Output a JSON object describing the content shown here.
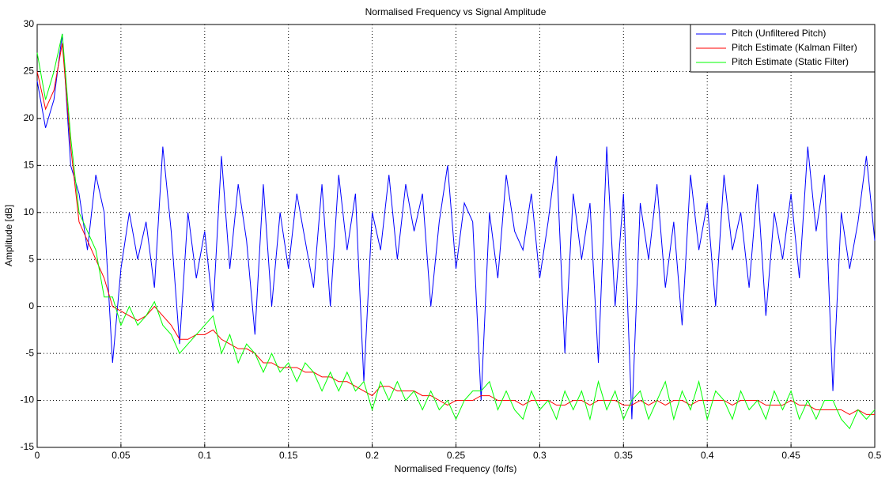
{
  "chart_data": {
    "type": "line",
    "title": "Normalised Frequency vs Signal Amplitude",
    "x_label": "Normalised Frequency (fo/fs)",
    "y_label": "Amplitude [dB]",
    "xlim": [
      0,
      0.5
    ],
    "ylim": [
      -15,
      30
    ],
    "xticks": [
      0,
      0.05,
      0.1,
      0.15,
      0.2,
      0.25,
      0.3,
      0.35,
      0.4,
      0.45,
      0.5
    ],
    "yticks": [
      -15,
      -10,
      -5,
      0,
      5,
      10,
      15,
      20,
      25,
      30
    ],
    "grid": true,
    "legend": "upper-right",
    "x": [
      0,
      0.005,
      0.01,
      0.015,
      0.02,
      0.025,
      0.03,
      0.035,
      0.04,
      0.045,
      0.05,
      0.055,
      0.06,
      0.065,
      0.07,
      0.075,
      0.08,
      0.085,
      0.09,
      0.095,
      0.1,
      0.105,
      0.11,
      0.115,
      0.12,
      0.125,
      0.13,
      0.135,
      0.14,
      0.145,
      0.15,
      0.155,
      0.16,
      0.165,
      0.17,
      0.175,
      0.18,
      0.185,
      0.19,
      0.195,
      0.2,
      0.205,
      0.21,
      0.215,
      0.22,
      0.225,
      0.23,
      0.235,
      0.24,
      0.245,
      0.25,
      0.255,
      0.26,
      0.265,
      0.27,
      0.275,
      0.28,
      0.285,
      0.29,
      0.295,
      0.3,
      0.305,
      0.31,
      0.315,
      0.32,
      0.325,
      0.33,
      0.335,
      0.34,
      0.345,
      0.35,
      0.355,
      0.36,
      0.365,
      0.37,
      0.375,
      0.38,
      0.385,
      0.39,
      0.395,
      0.4,
      0.405,
      0.41,
      0.415,
      0.42,
      0.425,
      0.43,
      0.435,
      0.44,
      0.445,
      0.45,
      0.455,
      0.46,
      0.465,
      0.47,
      0.475,
      0.48,
      0.485,
      0.49,
      0.495,
      0.5
    ],
    "series": [
      {
        "name": "Pitch (Unfiltered Pitch)",
        "color": "#0000ff",
        "values": [
          24,
          19,
          22,
          29,
          15,
          12,
          6,
          14,
          10,
          -6,
          4,
          10,
          5,
          9,
          2,
          17,
          8,
          -4,
          10,
          3,
          8,
          -0.5,
          16,
          4,
          13,
          7,
          -3,
          13,
          0,
          10,
          4,
          12,
          7,
          2,
          13,
          0,
          14,
          6,
          12,
          -8,
          10,
          6,
          14,
          5,
          13,
          8,
          12,
          0,
          9,
          15,
          4,
          11,
          9,
          -10,
          10,
          3,
          14,
          8,
          6,
          12,
          3,
          9,
          16,
          -5,
          12,
          5,
          11,
          -6,
          17,
          0,
          12,
          -12,
          11,
          5,
          13,
          2,
          9,
          -2,
          14,
          6,
          11,
          0,
          14,
          6,
          10,
          2,
          13,
          -1,
          10,
          5,
          12,
          3,
          17,
          8,
          14,
          -9,
          10,
          4,
          9,
          16,
          7
        ]
      },
      {
        "name": "Pitch Estimate (Kalman Filter)",
        "color": "#ff0000",
        "values": [
          25,
          21,
          23,
          28,
          17,
          9,
          7,
          5,
          3,
          0,
          -0.5,
          -1,
          -1.5,
          -1,
          0,
          -1,
          -2,
          -3.5,
          -3.5,
          -3,
          -3,
          -2.5,
          -3.5,
          -4,
          -4.5,
          -4.5,
          -5,
          -6,
          -6,
          -6.5,
          -6.5,
          -6.5,
          -7,
          -7,
          -7.5,
          -7.5,
          -8,
          -8,
          -8.5,
          -9,
          -9.5,
          -8.5,
          -8.5,
          -9,
          -9,
          -9,
          -9.5,
          -9.5,
          -10,
          -10.5,
          -10,
          -10,
          -10,
          -9.5,
          -9.5,
          -10,
          -10,
          -10,
          -10.5,
          -10,
          -10,
          -10,
          -10.5,
          -10.5,
          -10,
          -10,
          -10.5,
          -10,
          -10,
          -10,
          -10.5,
          -10.5,
          -10,
          -10.5,
          -10,
          -10.5,
          -10,
          -10,
          -10.5,
          -10,
          -10,
          -10,
          -10,
          -10.5,
          -10,
          -10,
          -10,
          -10.5,
          -10.5,
          -10.5,
          -10,
          -10.5,
          -10.5,
          -11,
          -11,
          -11,
          -11,
          -11.5,
          -11,
          -11.5,
          -11.5
        ]
      },
      {
        "name": "Pitch Estimate (Static Filter)",
        "color": "#00ff00",
        "values": [
          27,
          22,
          25,
          29,
          18,
          10,
          8,
          6,
          1,
          1,
          -2,
          0,
          -2,
          -1,
          0.5,
          -2,
          -3,
          -5,
          -4,
          -3,
          -2,
          -1,
          -5,
          -3,
          -6,
          -4,
          -5,
          -7,
          -5,
          -7,
          -6,
          -8,
          -6,
          -7,
          -9,
          -7,
          -9,
          -7,
          -9,
          -8,
          -11,
          -8,
          -10,
          -8,
          -10,
          -9,
          -11,
          -9,
          -11,
          -10,
          -12,
          -10,
          -9,
          -9,
          -8,
          -11,
          -9,
          -11,
          -12,
          -9,
          -11,
          -10,
          -12,
          -9,
          -11,
          -9,
          -12,
          -8,
          -11,
          -9,
          -12,
          -10,
          -9,
          -12,
          -10,
          -8,
          -12,
          -9,
          -11,
          -8,
          -12,
          -9,
          -10,
          -12,
          -9,
          -11,
          -10,
          -12,
          -9,
          -11,
          -9,
          -12,
          -10,
          -12,
          -10,
          -10,
          -12,
          -13,
          -11,
          -12,
          -11
        ]
      }
    ]
  }
}
